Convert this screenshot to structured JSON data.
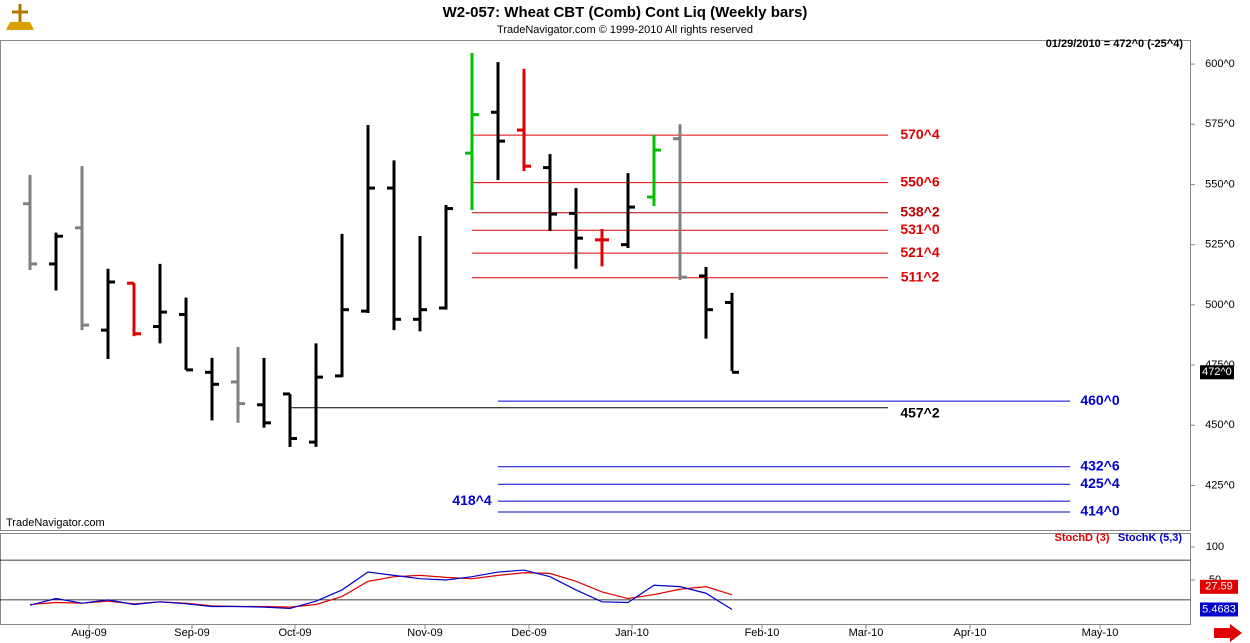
{
  "chart_data": [
    {
      "type": "ohlc",
      "title": "W2-057:  Wheat CBT (Comb) Cont Liq  (Weekly bars)",
      "subtitle": "TradeNavigator.com © 1999-2010 All rights reserved",
      "info": "01/29/2010 = 472^0 (-25^4)",
      "watermark": "TradeNavigator.com",
      "categories": [
        null,
        null,
        null,
        null,
        null,
        null,
        null,
        null,
        null,
        null,
        null,
        null,
        null,
        null,
        null,
        null,
        null,
        null,
        null,
        null,
        null,
        null,
        null,
        null,
        null,
        null,
        null,
        null
      ],
      "open": [
        542,
        517,
        532,
        489.5,
        509,
        491,
        496,
        472,
        468,
        458.5,
        463,
        443,
        470.5,
        497.4,
        548.5,
        494,
        498.7,
        563,
        580,
        572.6,
        557,
        538,
        527,
        525,
        544.8,
        569,
        512,
        501
      ],
      "high": [
        554,
        530,
        557.6,
        515,
        509,
        517,
        503,
        478,
        482.5,
        478,
        463,
        484,
        529.5,
        574.7,
        560,
        528.6,
        541.5,
        604.6,
        600.8,
        598,
        562.6,
        548.5,
        531.5,
        554.7,
        570.5,
        575,
        515.7,
        505
      ],
      "low": [
        514.5,
        506,
        489.5,
        477.5,
        487,
        484,
        473,
        452,
        451,
        449,
        441,
        441,
        470,
        496.6,
        489.5,
        489,
        498,
        539.4,
        551.8,
        555.6,
        530.6,
        515,
        516,
        523.6,
        541,
        510.3,
        486,
        472.5
      ],
      "close": [
        517,
        528.5,
        491.6,
        509.5,
        488,
        497,
        473,
        467,
        459,
        451,
        444.5,
        470,
        498,
        548.5,
        494,
        498,
        540,
        579,
        568,
        557.6,
        537.7,
        527.7,
        527,
        540.6,
        564.3,
        511.5,
        498,
        472
      ],
      "colors": [
        "#808080",
        "#000000",
        "#808080",
        "#000000",
        "#e00000",
        "#000000",
        "#000000",
        "#000000",
        "#808080",
        "#000000",
        "#000000",
        "#000000",
        "#000000",
        "#000000",
        "#000000",
        "#000000",
        "#000000",
        "#00c000",
        "#000000",
        "#e00000",
        "#000000",
        "#000000",
        "#e00000",
        "#000000",
        "#00c000",
        "#808080",
        "#000000",
        "#000000"
      ],
      "ylim": [
        406.5,
        610
      ],
      "yticks": [
        {
          "value": 600,
          "label": "600^0"
        },
        {
          "value": 575,
          "label": "575^0"
        },
        {
          "value": 550,
          "label": "550^0"
        },
        {
          "value": 525,
          "label": "525^0"
        },
        {
          "value": 500,
          "label": "500^0"
        },
        {
          "value": 475,
          "label": "475^0"
        },
        {
          "value": 450,
          "label": "450^0"
        },
        {
          "value": 425,
          "label": "425^0"
        }
      ],
      "levels": [
        {
          "value": 570.5,
          "label": "570^4",
          "color": "#e00000"
        },
        {
          "value": 550.75,
          "label": "550^6",
          "color": "#e00000"
        },
        {
          "value": 538.25,
          "label": "538^2",
          "color": "#c00000"
        },
        {
          "value": 531,
          "label": "531^0",
          "color": "#e00000"
        },
        {
          "value": 521.5,
          "label": "521^4",
          "color": "#e00000"
        },
        {
          "value": 511.25,
          "label": "511^2",
          "color": "#e00000"
        },
        {
          "value": 460,
          "label": "460^0",
          "color": "#0000cc"
        },
        {
          "value": 457.25,
          "label": "457^2",
          "color": "#000000"
        },
        {
          "value": 432.75,
          "label": "432^6",
          "color": "#0000cc"
        },
        {
          "value": 425.5,
          "label": "425^4",
          "color": "#0000cc"
        },
        {
          "value": 418.5,
          "label": "418^4",
          "color": "#0000cc"
        },
        {
          "value": 414,
          "label": "414^0",
          "color": "#0000cc"
        }
      ],
      "last": {
        "value": 472,
        "label": "472^0"
      },
      "x_labels": [
        "Aug-09",
        "Sep-09",
        "Oct-09",
        "Nov-09",
        "Dec-09",
        "Jan-10",
        "Feb-10",
        "Mar-10",
        "Apr-10",
        "May-10"
      ]
    },
    {
      "type": "line",
      "series": [
        {
          "name": "StochD (3)",
          "color": "#e00000",
          "values": [
            13,
            16,
            15,
            18,
            14,
            17,
            15,
            11,
            10,
            10,
            9,
            13,
            25,
            48,
            55,
            57,
            54,
            52,
            57,
            61,
            60,
            48,
            32,
            22,
            28,
            36,
            40,
            27.59
          ]
        },
        {
          "name": "StochK (5,3)",
          "color": "#0000cc",
          "values": [
            12,
            22,
            15,
            20,
            13,
            17,
            14,
            10,
            10,
            9,
            7,
            18,
            35,
            62,
            57,
            52,
            50,
            55,
            62,
            65,
            55,
            35,
            17,
            16,
            42,
            40,
            30,
            5.4683
          ]
        }
      ],
      "ylim": [
        -18,
        118
      ],
      "yticks": [
        100,
        50
      ],
      "levels": [
        80,
        20
      ]
    }
  ]
}
